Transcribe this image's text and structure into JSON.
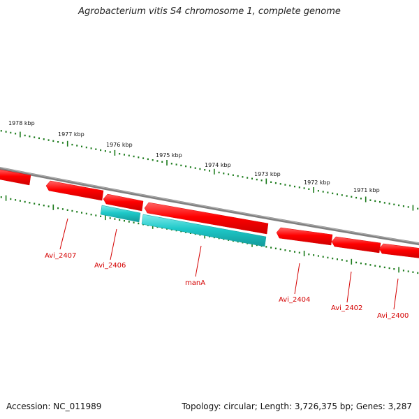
{
  "title": "Agrobacterium vitis S4 chromosome 1, complete genome",
  "footer": {
    "accession": "Accession: NC_011989",
    "summary": "Topology: circular; Length: 3,726,375 bp; Genes: 3,287"
  },
  "colors": {
    "forward_gene": "#ff0000",
    "reverse_gene": "#1ec8c8",
    "backbone": "#808080",
    "ticks": "#1a7a1a",
    "label": "#d40000"
  },
  "scale_labels": [
    "1978 kbp",
    "1977 kbp",
    "1976 kbp",
    "1975 kbp",
    "1974 kbp",
    "1973 kbp",
    "1972 kbp",
    "1971 kbp"
  ],
  "gene_labels": [
    "Avi_2407",
    "Avi_2406",
    "manA",
    "Avi_2404",
    "Avi_2402",
    "Avi_2400"
  ]
}
